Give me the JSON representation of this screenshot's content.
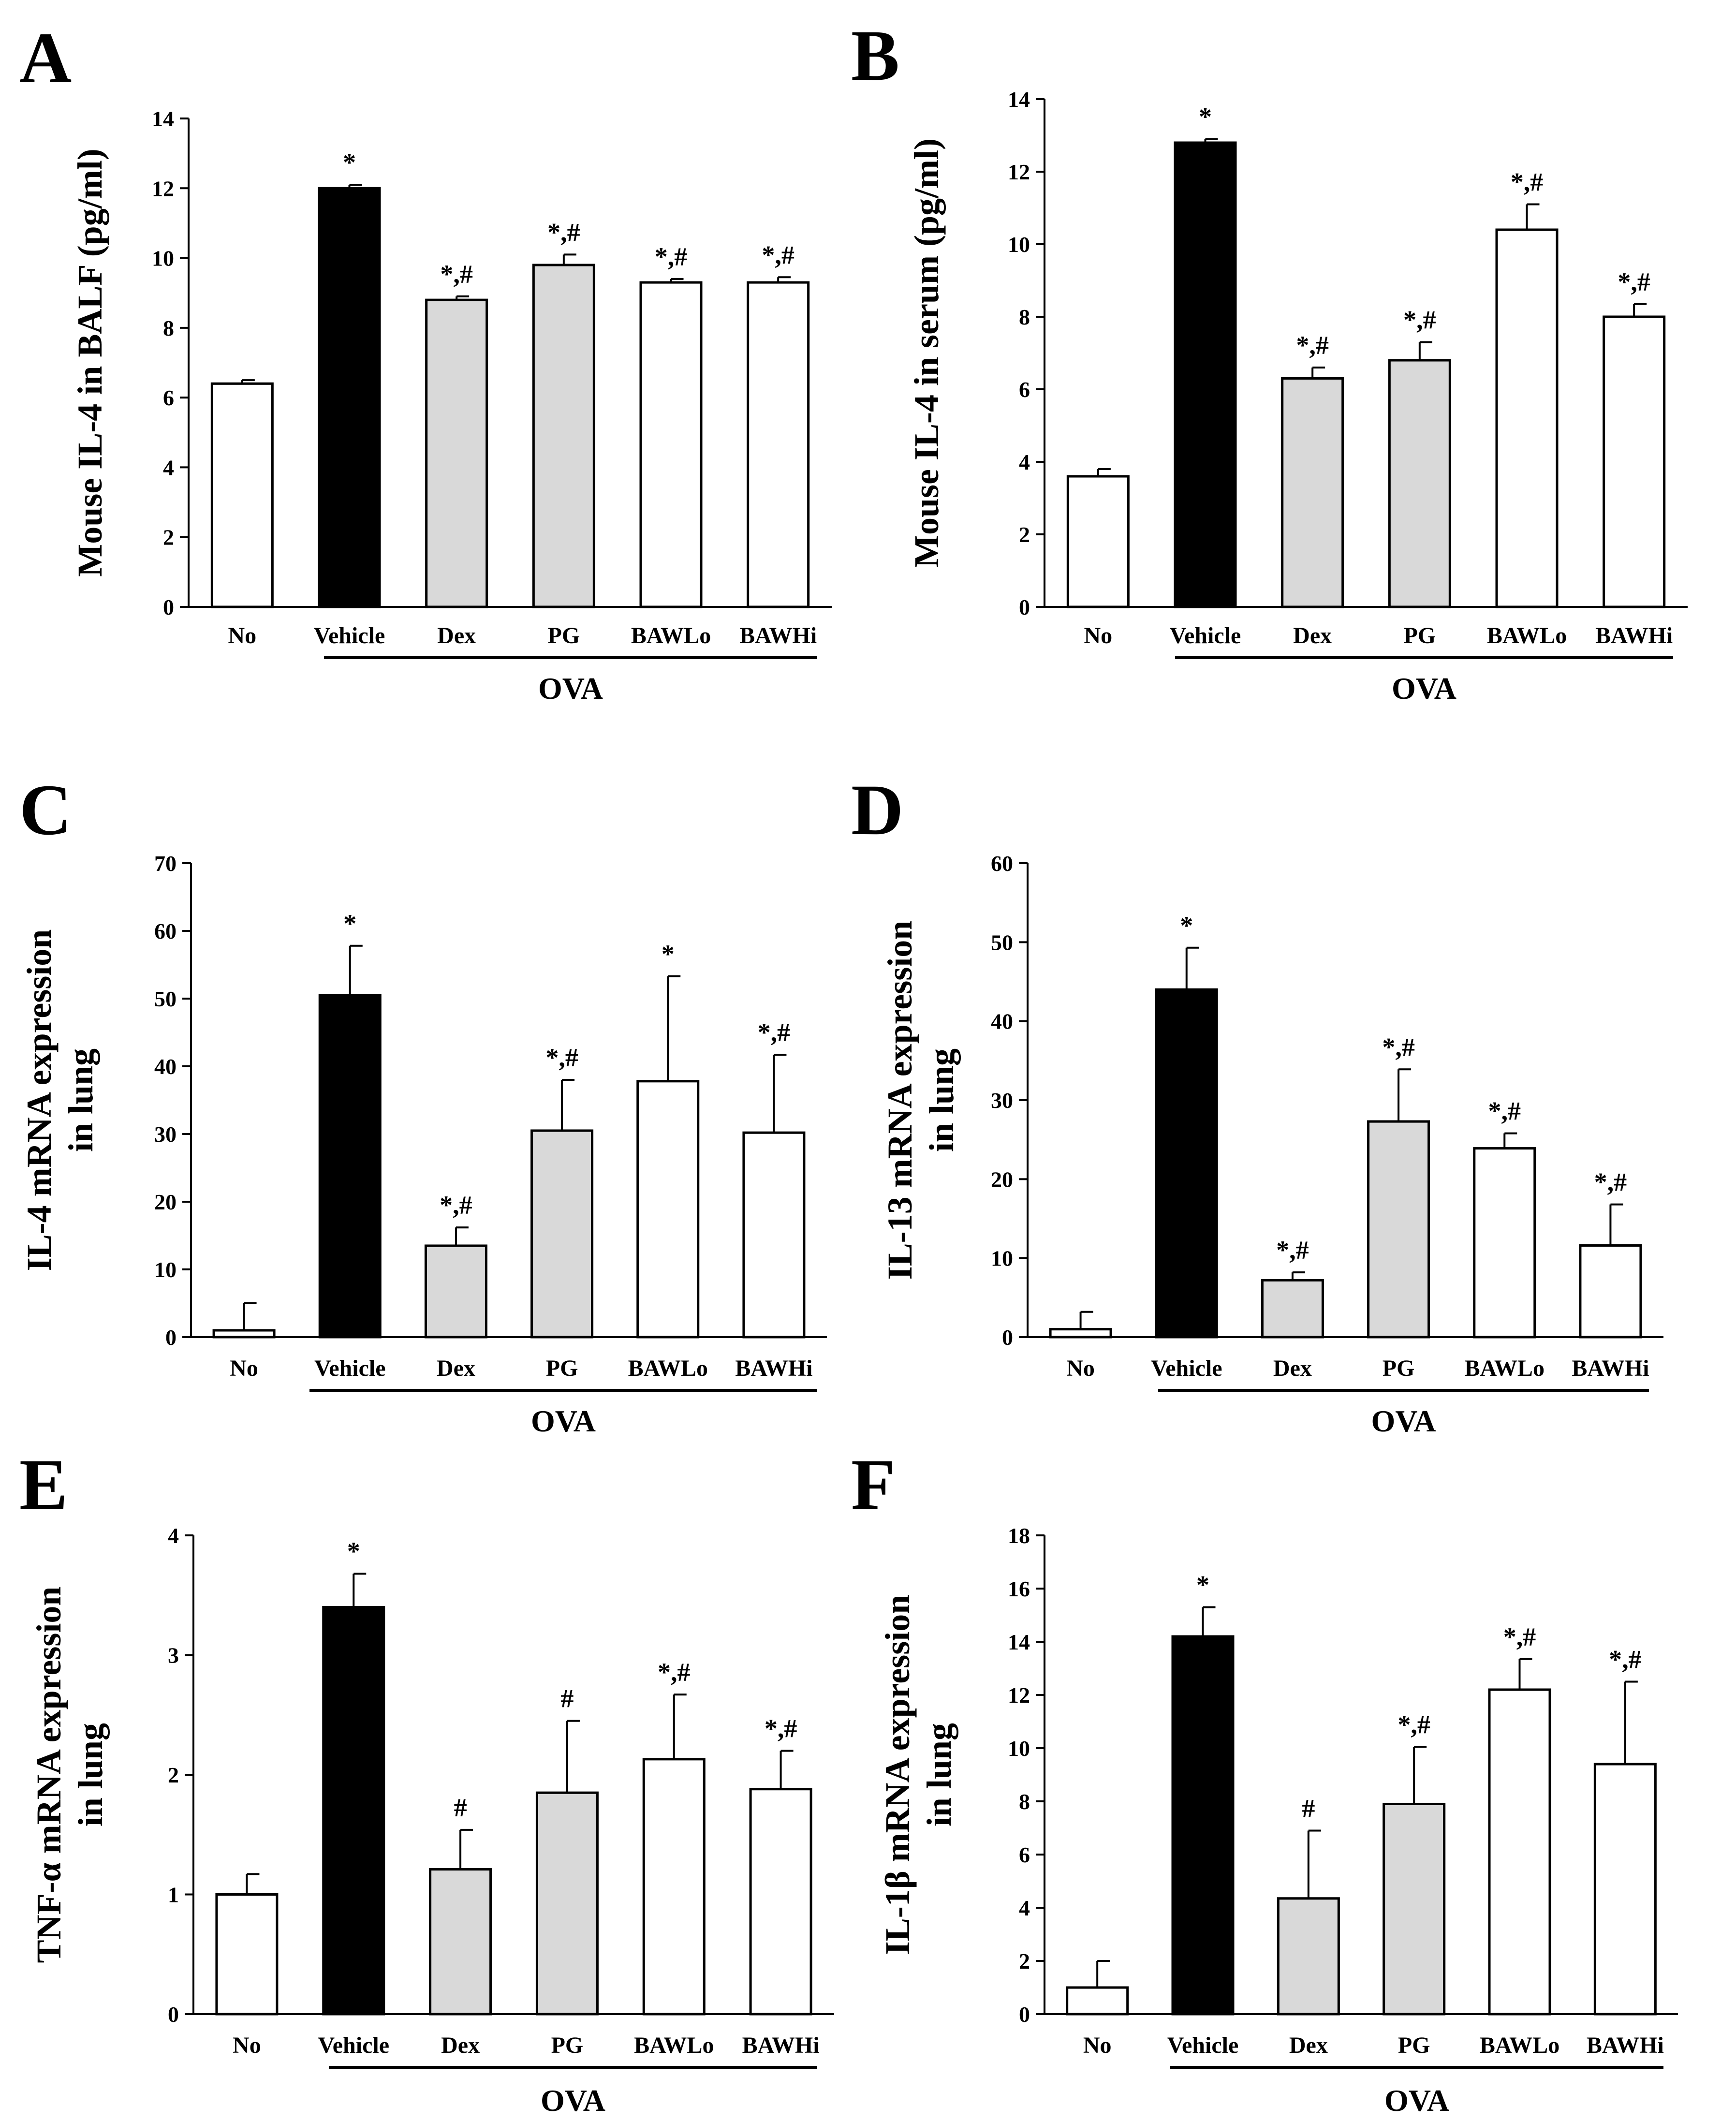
{
  "figure": {
    "group_label": "OVA"
  },
  "colors": {
    "no": "#ffffff",
    "vehicle": "#000000",
    "dex": "#d9d9d9",
    "pg": "#d9d9d9",
    "bawlo": "#ffffff",
    "bawhi": "#ffffff"
  },
  "chart_data": [
    {
      "panel": "A",
      "type": "bar",
      "categories": [
        "No",
        "Vehicle",
        "Dex",
        "PG",
        "BAWLo",
        "BAWHi"
      ],
      "values": [
        6.4,
        12.0,
        8.8,
        9.8,
        9.3,
        9.3
      ],
      "errors": [
        0.1,
        0.1,
        0.1,
        0.3,
        0.1,
        0.15
      ],
      "significance": [
        "",
        "*",
        "*,#",
        "*,#",
        "*,#",
        "*,#"
      ],
      "ylabel_lines": [
        "Mouse IL-4 in BALF (pg/ml)"
      ],
      "ylim": [
        0,
        14
      ],
      "yticks": [
        "0",
        "2",
        "4",
        "6",
        "8",
        "10",
        "12",
        "14"
      ],
      "group_label": "OVA"
    },
    {
      "panel": "B",
      "type": "bar",
      "categories": [
        "No",
        "Vehicle",
        "Dex",
        "PG",
        "BAWLo",
        "BAWHi"
      ],
      "values": [
        3.6,
        12.8,
        6.3,
        6.8,
        10.4,
        8.0
      ],
      "errors": [
        0.2,
        0.1,
        0.3,
        0.5,
        0.7,
        0.35
      ],
      "significance": [
        "",
        "*",
        "*,#",
        "*,#",
        "*,#",
        "*,#"
      ],
      "ylabel_lines": [
        "Mouse IL-4 in serum (pg/ml)"
      ],
      "ylim": [
        0,
        14
      ],
      "yticks": [
        "0",
        "2",
        "4",
        "6",
        "8",
        "10",
        "12",
        "14"
      ],
      "group_label": "OVA"
    },
    {
      "panel": "C",
      "type": "bar",
      "categories": [
        "No",
        "Vehicle",
        "Dex",
        "PG",
        "BAWLo",
        "BAWHi"
      ],
      "values": [
        1.0,
        50.5,
        13.5,
        30.5,
        37.8,
        30.2
      ],
      "errors": [
        4.0,
        7.3,
        2.7,
        7.5,
        15.5,
        11.5
      ],
      "significance": [
        "",
        "*",
        "*,#",
        "*,#",
        "*",
        "*,#"
      ],
      "ylabel_lines": [
        "IL-4 mRNA expression",
        "in lung"
      ],
      "ylim": [
        0,
        70
      ],
      "yticks": [
        "0",
        "10",
        "20",
        "30",
        "40",
        "50",
        "60",
        "70"
      ],
      "group_label": "OVA"
    },
    {
      "panel": "D",
      "type": "bar",
      "categories": [
        "No",
        "Vehicle",
        "Dex",
        "PG",
        "BAWLo",
        "BAWHi"
      ],
      "values": [
        1.0,
        44.0,
        7.2,
        27.3,
        23.9,
        11.6
      ],
      "errors": [
        2.2,
        5.3,
        1.0,
        6.6,
        1.9,
        5.2
      ],
      "significance": [
        "",
        "*",
        "*,#",
        "*,#",
        "*,#",
        "*,#"
      ],
      "ylabel_lines": [
        "IL-13 mRNA expression",
        "in lung"
      ],
      "ylim": [
        0,
        60
      ],
      "yticks": [
        "0",
        "10",
        "20",
        "30",
        "40",
        "50",
        "60"
      ],
      "group_label": "OVA"
    },
    {
      "panel": "E",
      "type": "bar",
      "categories": [
        "No",
        "Vehicle",
        "Dex",
        "PG",
        "BAWLo",
        "BAWHi"
      ],
      "values": [
        1.0,
        3.4,
        1.21,
        1.85,
        2.13,
        1.88
      ],
      "errors": [
        0.17,
        0.28,
        0.33,
        0.6,
        0.54,
        0.32
      ],
      "significance": [
        "",
        "*",
        "#",
        "#",
        "*,#",
        "*,#"
      ],
      "ylabel_lines": [
        "TNF-α mRNA expression",
        "in lung"
      ],
      "ylim": [
        0,
        4
      ],
      "yticks": [
        "0",
        "1",
        "2",
        "3",
        "4"
      ],
      "group_label": "OVA"
    },
    {
      "panel": "F",
      "type": "bar",
      "categories": [
        "No",
        "Vehicle",
        "Dex",
        "PG",
        "BAWLo",
        "BAWHi"
      ],
      "values": [
        1.0,
        14.2,
        4.35,
        7.9,
        12.2,
        9.4
      ],
      "errors": [
        1.0,
        1.1,
        2.55,
        2.15,
        1.15,
        3.1
      ],
      "significance": [
        "",
        "*",
        "#",
        "*,#",
        "*,#",
        "*,#"
      ],
      "ylabel_lines": [
        "IL-1β mRNA expression",
        "in lung"
      ],
      "ylim": [
        0,
        18
      ],
      "yticks": [
        "0",
        "2",
        "4",
        "6",
        "8",
        "10",
        "12",
        "14",
        "16",
        "18"
      ],
      "group_label": "OVA"
    }
  ]
}
